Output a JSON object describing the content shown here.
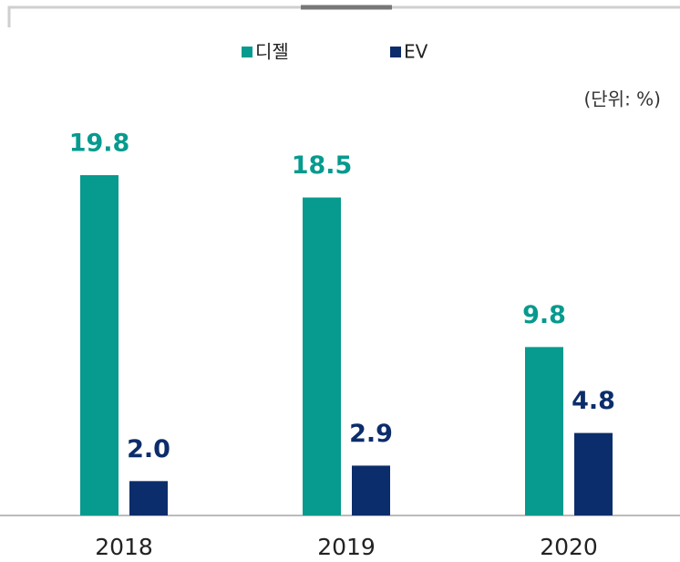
{
  "chart_data": {
    "type": "bar",
    "unit_note": "(단위: %)",
    "categories": [
      "2018",
      "2019",
      "2020"
    ],
    "series": [
      {
        "name": "디젤",
        "color": "#079a8e",
        "values": [
          19.8,
          18.5,
          9.8
        ],
        "value_labels": [
          "19.8",
          "18.5",
          "9.8"
        ]
      },
      {
        "name": "EV",
        "color": "#0c2d6b",
        "values": [
          2.0,
          2.9,
          4.8
        ],
        "value_labels": [
          "2.0",
          "2.9",
          "4.8"
        ]
      }
    ]
  }
}
